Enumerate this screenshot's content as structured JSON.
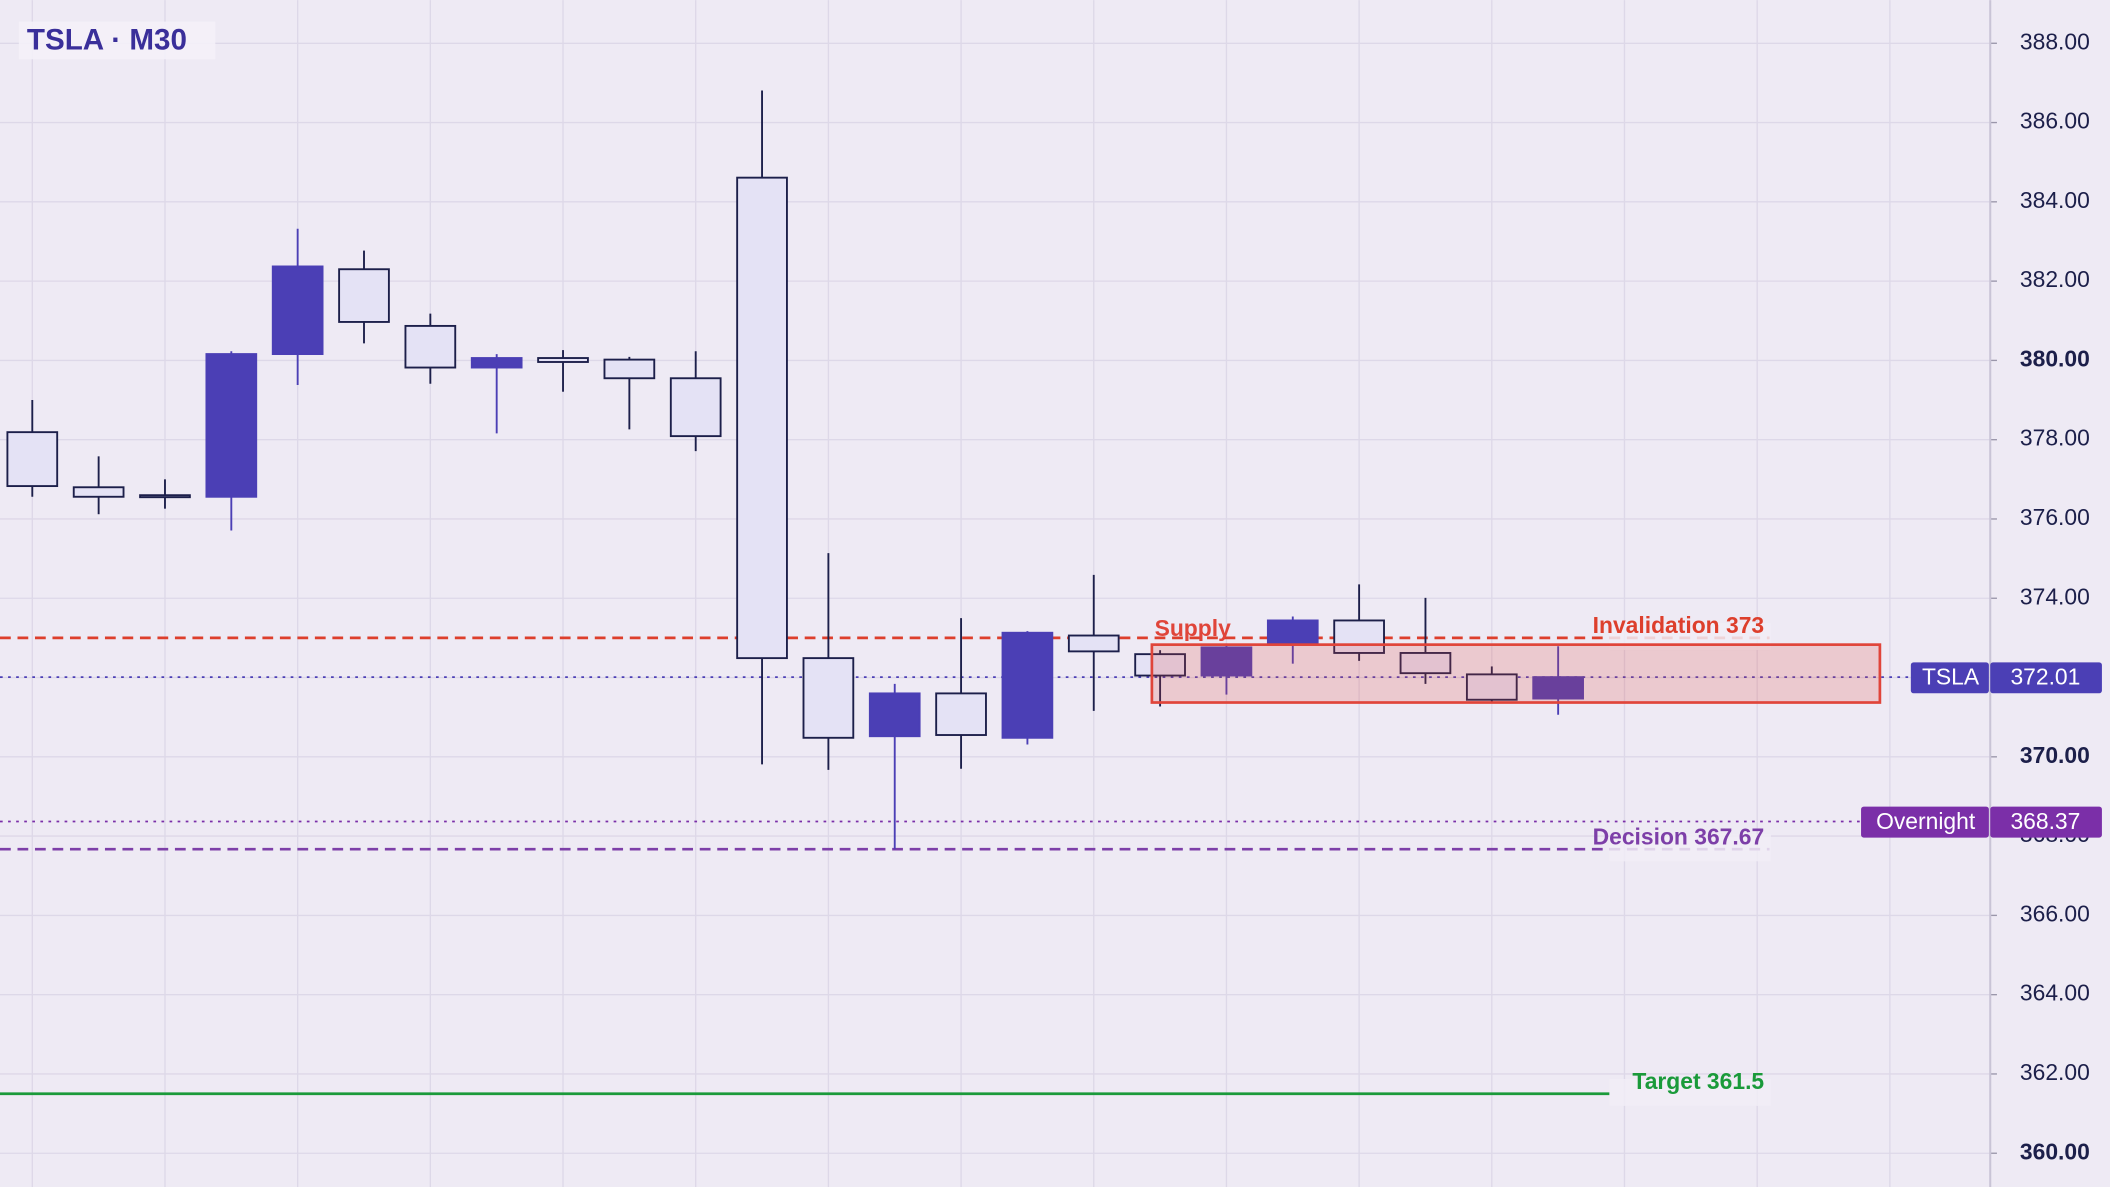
{
  "chart_data": {
    "type": "candlestick",
    "title": "TSLA · M30",
    "open": [
      378.19,
      376.8,
      376.6,
      376.56,
      380.16,
      382.3,
      380.87,
      379.82,
      380.06,
      380.02,
      379.55,
      384.61,
      372.49,
      370.52,
      371.6,
      370.48,
      373.06,
      372.59,
      372.05,
      372.83,
      373.44,
      372.62,
      372.08,
      371.47
    ],
    "high": [
      379.0,
      377.58,
      377.0,
      380.23,
      383.32,
      382.77,
      381.18,
      380.16,
      380.26,
      380.09,
      380.23,
      386.81,
      375.14,
      371.84,
      373.5,
      373.17,
      374.59,
      372.69,
      372.86,
      373.54,
      374.35,
      374.01,
      372.28,
      372.79
    ],
    "low": [
      376.56,
      376.12,
      376.26,
      375.71,
      379.38,
      380.43,
      379.41,
      378.16,
      379.21,
      378.26,
      377.71,
      369.81,
      369.67,
      367.67,
      369.7,
      370.31,
      371.16,
      371.27,
      371.57,
      372.35,
      372.42,
      371.84,
      371.37,
      371.06
    ],
    "close": [
      376.83,
      376.56,
      376.6,
      380.16,
      382.37,
      380.97,
      379.82,
      380.06,
      379.96,
      379.55,
      378.09,
      372.49,
      370.48,
      371.6,
      370.55,
      373.13,
      372.66,
      372.05,
      372.76,
      373.44,
      372.62,
      372.11,
      371.44,
      372.01
    ],
    "up_color": "#4b3fb5",
    "down_color": "#e4e2f5",
    "ylim": [
      359.15,
      389.09
    ],
    "yticks": [
      {
        "value": 360,
        "label": "360.00"
      },
      {
        "value": 362,
        "label": "362.00"
      },
      {
        "value": 364,
        "label": "364.00"
      },
      {
        "value": 366,
        "label": "366.00"
      },
      {
        "value": 368,
        "label": "368.00"
      },
      {
        "value": 370,
        "label": "370.00"
      },
      {
        "value": 372,
        "label": "372.00"
      },
      {
        "value": 374,
        "label": "374.00"
      },
      {
        "value": 376,
        "label": "376.00"
      },
      {
        "value": 378,
        "label": "378.00"
      },
      {
        "value": 380,
        "label": "380.00"
      },
      {
        "value": 382,
        "label": "382.00"
      },
      {
        "value": 384,
        "label": "384.00"
      },
      {
        "value": 386,
        "label": "386.00"
      },
      {
        "value": 388,
        "label": "388.00"
      }
    ],
    "grid": true,
    "zone": {
      "label": "Supply",
      "top": 372.83,
      "bottom": 371.37,
      "color": "#e0453a"
    },
    "levels": [
      {
        "label": "Invalidation 373",
        "value": 373,
        "color": "#dd3f2c",
        "style": "dashed"
      },
      {
        "label": "Decision 367.67",
        "value": 367.67,
        "color": "#7d3fa8",
        "style": "dashed"
      },
      {
        "label": "Target 361.5",
        "value": 361.5,
        "color": "#1a9a3a",
        "style": "solid"
      }
    ],
    "badges": [
      {
        "label": "TSLA",
        "value": 372.01,
        "color": "#4b3fb5"
      },
      {
        "label": "Overnight",
        "value": 368.37,
        "color": "#7b2fa8"
      }
    ]
  }
}
